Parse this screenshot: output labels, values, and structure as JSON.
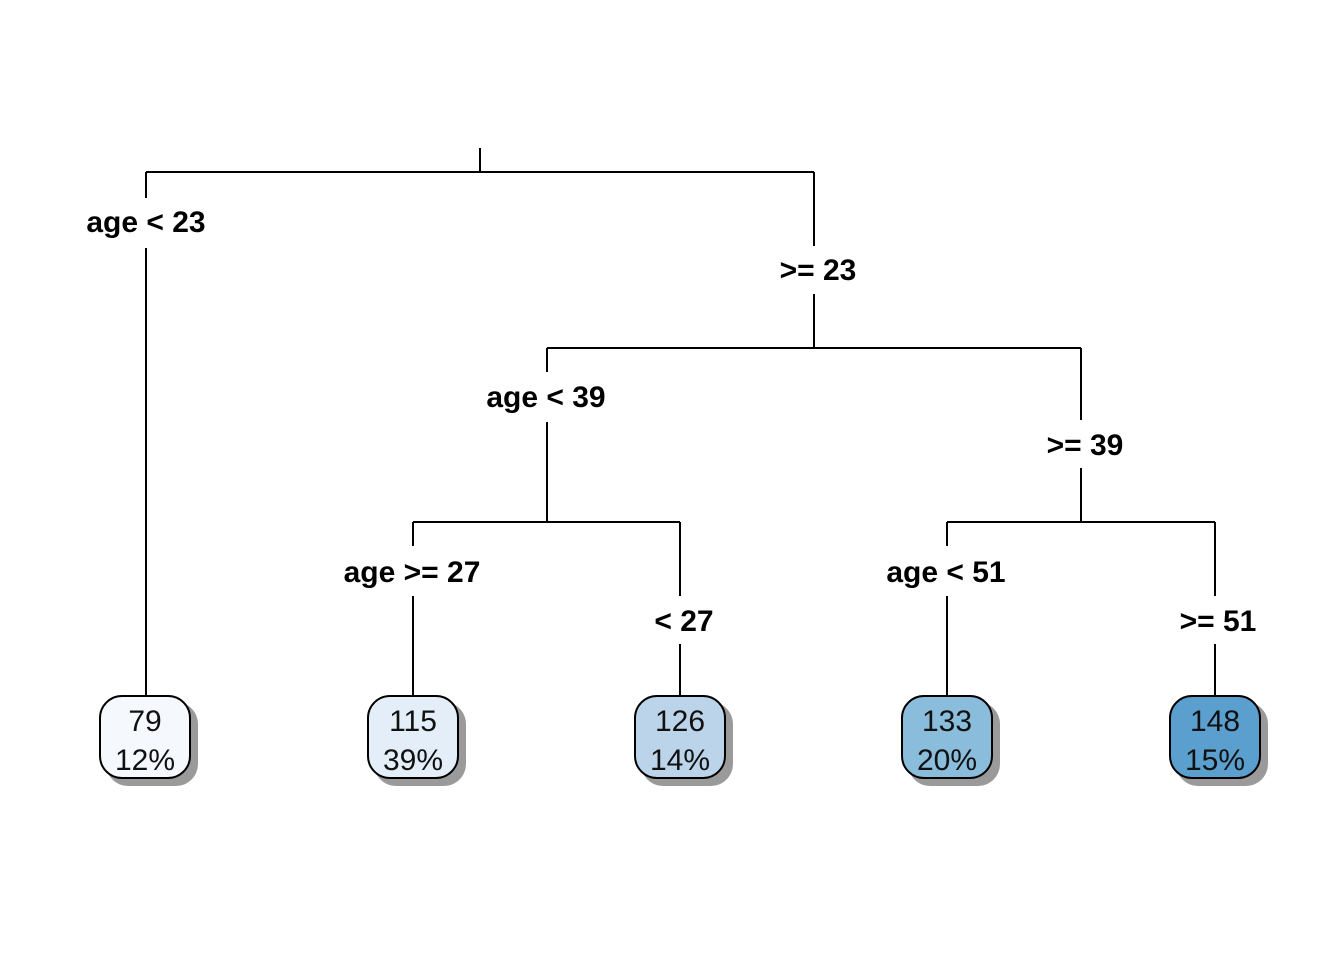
{
  "chart_data": {
    "type": "decision-tree",
    "root": {
      "left": {
        "label": "age < 23",
        "leaf": "leaf_1"
      },
      "right": {
        "label": ">= 23",
        "children": {
          "left": {
            "label": "age < 39",
            "children": {
              "left": {
                "label": "age >= 27",
                "leaf": "leaf_2"
              },
              "right": {
                "label": "< 27",
                "leaf": "leaf_3"
              }
            }
          },
          "right": {
            "label": ">= 39",
            "children": {
              "left": {
                "label": "age < 51",
                "leaf": "leaf_4"
              },
              "right": {
                "label": ">= 51",
                "leaf": "leaf_5"
              }
            }
          }
        }
      }
    },
    "leaves": [
      {
        "id": "leaf_1",
        "value": "79",
        "percent": "12%",
        "color": "#f5f9fd"
      },
      {
        "id": "leaf_2",
        "value": "115",
        "percent": "39%",
        "color": "#e3eef8"
      },
      {
        "id": "leaf_3",
        "value": "126",
        "percent": "14%",
        "color": "#bcd4ea"
      },
      {
        "id": "leaf_4",
        "value": "133",
        "percent": "20%",
        "color": "#8abcdb"
      },
      {
        "id": "leaf_5",
        "value": "148",
        "percent": "15%",
        "color": "#5a9fcd"
      }
    ]
  },
  "labels": {
    "split_age_lt_23": "age < 23",
    "split_ge_23": ">= 23",
    "split_age_lt_39": "age < 39",
    "split_ge_39": ">= 39",
    "split_age_ge_27": "age >= 27",
    "split_lt_27": "< 27",
    "split_age_lt_51": "age < 51",
    "split_ge_51": ">= 51"
  }
}
